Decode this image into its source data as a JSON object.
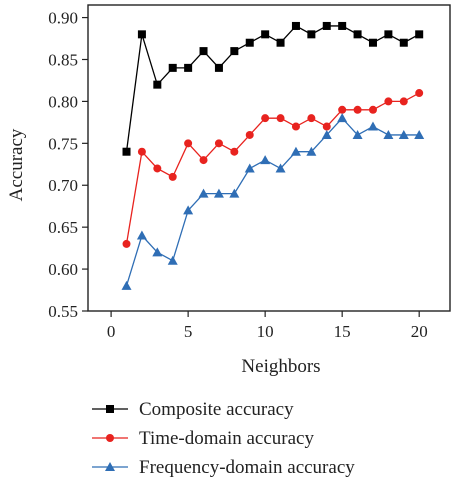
{
  "chart_data": {
    "type": "line",
    "title": "",
    "xlabel": "Neighbors",
    "ylabel": "Accuracy",
    "xlim": [
      -1.5,
      22
    ],
    "ylim": [
      0.55,
      0.915
    ],
    "x_ticks": [
      0,
      5,
      10,
      15,
      20
    ],
    "y_ticks": [
      0.55,
      0.6,
      0.65,
      0.7,
      0.75,
      0.8,
      0.85,
      0.9
    ],
    "grid": false,
    "legend_position": "bottom",
    "x": [
      1,
      2,
      3,
      4,
      5,
      6,
      7,
      8,
      9,
      10,
      11,
      12,
      13,
      14,
      15,
      16,
      17,
      18,
      19,
      20
    ],
    "series": [
      {
        "name": "Composite accuracy",
        "color": "#000000",
        "marker": "square",
        "values": [
          0.74,
          0.88,
          0.82,
          0.84,
          0.84,
          0.86,
          0.84,
          0.86,
          0.87,
          0.88,
          0.87,
          0.89,
          0.88,
          0.89,
          0.89,
          0.88,
          0.87,
          0.88,
          0.87,
          0.88
        ]
      },
      {
        "name": "Time-domain accuracy",
        "color": "#e8231f",
        "marker": "circle",
        "values": [
          0.63,
          0.74,
          0.72,
          0.71,
          0.75,
          0.73,
          0.75,
          0.74,
          0.76,
          0.78,
          0.78,
          0.77,
          0.78,
          0.77,
          0.79,
          0.79,
          0.79,
          0.8,
          0.8,
          0.81
        ]
      },
      {
        "name": "Frequency-domain accuracy",
        "color": "#2f6eb5",
        "marker": "triangle",
        "values": [
          0.58,
          0.64,
          0.62,
          0.61,
          0.67,
          0.69,
          0.69,
          0.69,
          0.72,
          0.73,
          0.72,
          0.74,
          0.74,
          0.76,
          0.78,
          0.76,
          0.77,
          0.76,
          0.76,
          0.76
        ]
      }
    ]
  }
}
